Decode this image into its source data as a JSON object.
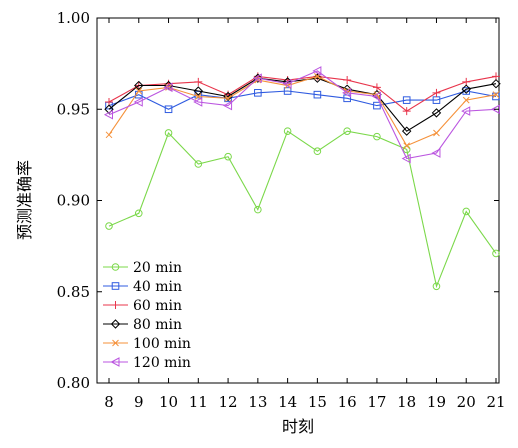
{
  "chart_data": {
    "type": "line",
    "xlabel": "时刻",
    "ylabel": "预测准确率",
    "categories": [
      "8",
      "9",
      "10",
      "11",
      "12",
      "13",
      "14",
      "15",
      "16",
      "17",
      "18",
      "19",
      "20",
      "21"
    ],
    "ylim": [
      0.8,
      1.0
    ],
    "yticks": [
      "0.80",
      "0.85",
      "0.90",
      "0.95",
      "1.00"
    ],
    "grid": false,
    "legend_position": "lower-left",
    "series": [
      {
        "name": "20 min",
        "color": "#7bd84a",
        "marker": "circle",
        "values": [
          0.886,
          0.893,
          0.937,
          0.92,
          0.924,
          0.895,
          0.938,
          0.927,
          0.938,
          0.935,
          0.928,
          0.853,
          0.894,
          0.871
        ]
      },
      {
        "name": "40 min",
        "color": "#2f5be0",
        "marker": "square",
        "values": [
          0.952,
          0.958,
          0.95,
          0.958,
          0.956,
          0.959,
          0.96,
          0.958,
          0.956,
          0.952,
          0.955,
          0.955,
          0.96,
          0.957
        ]
      },
      {
        "name": "60 min",
        "color": "#e8344b",
        "marker": "plus",
        "values": [
          0.954,
          0.963,
          0.964,
          0.965,
          0.958,
          0.968,
          0.966,
          0.968,
          0.966,
          0.962,
          0.949,
          0.959,
          0.965,
          0.968
        ]
      },
      {
        "name": "80 min",
        "color": "#000000",
        "marker": "diamond",
        "values": [
          0.95,
          0.963,
          0.963,
          0.96,
          0.957,
          0.967,
          0.965,
          0.967,
          0.961,
          0.958,
          0.938,
          0.948,
          0.961,
          0.964
        ]
      },
      {
        "name": "100 min",
        "color": "#f5913a",
        "marker": "cross",
        "values": [
          0.936,
          0.96,
          0.962,
          0.957,
          0.956,
          0.966,
          0.963,
          0.968,
          0.96,
          0.958,
          0.93,
          0.937,
          0.955,
          0.958
        ]
      },
      {
        "name": "120 min",
        "color": "#bb56e0",
        "marker": "triangle-left",
        "values": [
          0.947,
          0.954,
          0.962,
          0.954,
          0.952,
          0.967,
          0.964,
          0.971,
          0.959,
          0.957,
          0.923,
          0.926,
          0.949,
          0.95
        ]
      }
    ]
  }
}
